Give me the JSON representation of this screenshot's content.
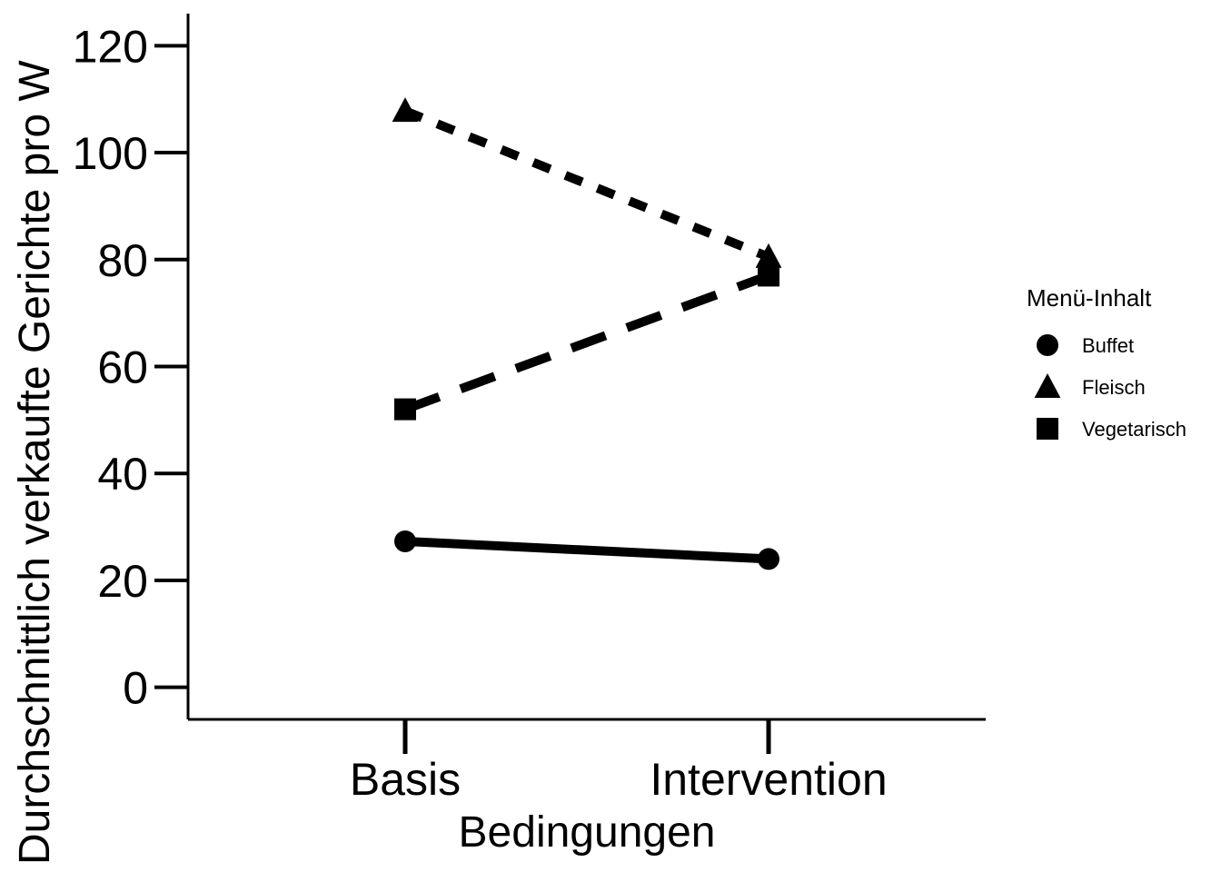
{
  "chart_data": {
    "type": "line",
    "categories": [
      "Basis",
      "Intervention"
    ],
    "xlabel": "Bedingungen",
    "ylabel": "Durchschnittlich verkaufte Gerichte pro W",
    "ylim": [
      -6,
      126
    ],
    "yticks": [
      0,
      20,
      40,
      60,
      80,
      100,
      120
    ],
    "ytick_labels": [
      "0",
      "20",
      "40",
      "60",
      "80",
      "100",
      "120"
    ],
    "series": [
      {
        "name": "Buffet",
        "values": [
          27.3,
          24.0
        ],
        "marker": "circle",
        "linestyle": "solid"
      },
      {
        "name": "Fleisch",
        "values": [
          107.8,
          80.5
        ],
        "marker": "triangle",
        "linestyle": "dotted"
      },
      {
        "name": "Vegetarisch",
        "values": [
          52.0,
          77.0
        ],
        "marker": "square",
        "linestyle": "dashed"
      }
    ],
    "legend": {
      "title": "Menü-Inhalt",
      "position": "right"
    },
    "color": "#000000",
    "grid": false
  }
}
